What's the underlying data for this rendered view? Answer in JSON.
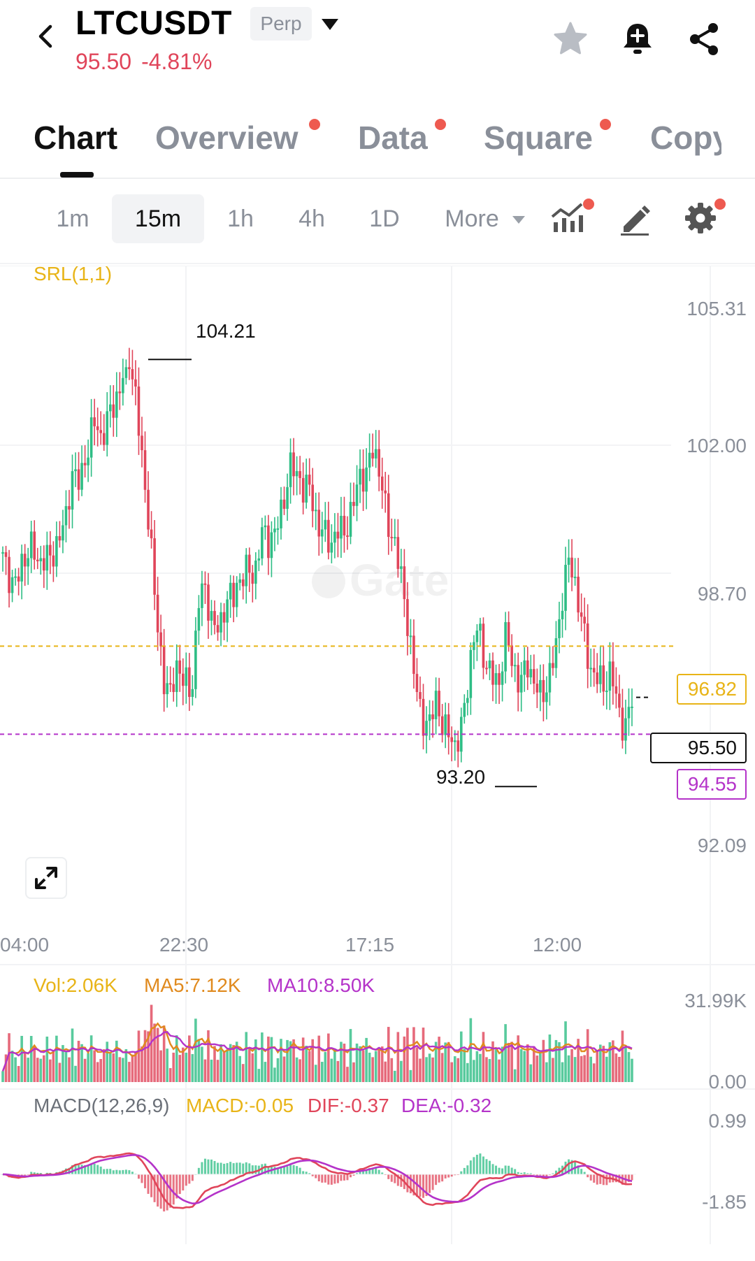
{
  "header": {
    "symbol": "LTCUSDT",
    "badge": "Perp",
    "price": "95.50",
    "change": "-4.81%"
  },
  "tabs": [
    {
      "label": "Chart",
      "active": true,
      "dot": false
    },
    {
      "label": "Overview",
      "active": false,
      "dot": true
    },
    {
      "label": "Data",
      "active": false,
      "dot": true
    },
    {
      "label": "Square",
      "active": false,
      "dot": true
    },
    {
      "label": "Copy",
      "active": false,
      "dot": false
    }
  ],
  "timeframes": [
    "1m",
    "15m",
    "1h",
    "4h",
    "1D",
    "More"
  ],
  "active_timeframe": "15m",
  "colors": {
    "up": "#2ebd85",
    "down": "#e0455a",
    "accent_yellow": "#e8b417",
    "accent_purple": "#b433c9",
    "price_red": "#e0455a"
  },
  "icons": {
    "back": "chevron-left-icon",
    "dropdown": "caret-down-icon",
    "favorite": "star-icon",
    "alert": "bell-plus-icon",
    "share": "share-icon",
    "indicators": "indicator-chart-icon",
    "draw": "pencil-icon",
    "settings": "gear-icon",
    "expand": "expand-icon"
  },
  "chart_data": [
    {
      "type": "candlestick",
      "indicator_label": "SRL(1,1)",
      "y_ticks": [
        "105.31",
        "102.00",
        "98.70",
        "92.09"
      ],
      "ylim": [
        92.09,
        105.31
      ],
      "x_ticks": [
        "04:00",
        "22:30",
        "17:15",
        "12:00"
      ],
      "high_label": "104.21",
      "low_label": "93.20",
      "current_price": "95.50",
      "srl_upper": "96.82",
      "srl_lower": "94.55",
      "close_path": [
        99.1,
        98.8,
        98.6,
        98.9,
        99.2,
        99.0,
        99.4,
        99.1,
        99.5,
        99.8,
        101.5,
        101.2,
        101.9,
        102.4,
        102.0,
        102.8,
        103.3,
        103.7,
        104.1,
        103.2,
        101.5,
        100.2,
        97.4,
        95.8,
        95.4,
        96.6,
        96.1,
        95.5,
        97.8,
        98.2,
        97.6,
        97.4,
        98.0,
        97.8,
        98.6,
        99.0,
        98.8,
        99.6,
        99.3,
        99.8,
        100.6,
        101.6,
        101.1,
        100.7,
        100.9,
        100.2,
        99.8,
        99.3,
        99.6,
        99.9,
        100.6,
        101.3,
        101.0,
        101.8,
        101.4,
        100.2,
        99.6,
        98.3,
        97.2,
        96.0,
        95.2,
        94.7,
        95.3,
        94.5,
        94.8,
        94.3,
        95.1,
        96.4,
        97.3,
        96.6,
        96.2,
        95.8,
        96.9,
        96.3,
        96.0,
        96.6,
        95.7,
        95.3,
        95.9,
        96.9,
        98.2,
        98.9,
        98.1,
        97.3,
        96.5,
        96.1,
        95.6,
        96.0,
        95.3,
        94.9,
        95.5
      ]
    },
    {
      "type": "bar",
      "indicator_label": "Vol:2.06K",
      "ma5_label": "MA5:7.12K",
      "ma10_label": "MA10:8.50K",
      "y_ticks": [
        "31.99K",
        "0.00"
      ]
    },
    {
      "type": "line",
      "indicator_label": "MACD(12,26,9)",
      "macd_label": "MACD:-0.05",
      "dif_label": "DIF:-0.37",
      "dea_label": "DEA:-0.32",
      "y_ticks": [
        "0.99",
        "-1.85"
      ]
    }
  ]
}
